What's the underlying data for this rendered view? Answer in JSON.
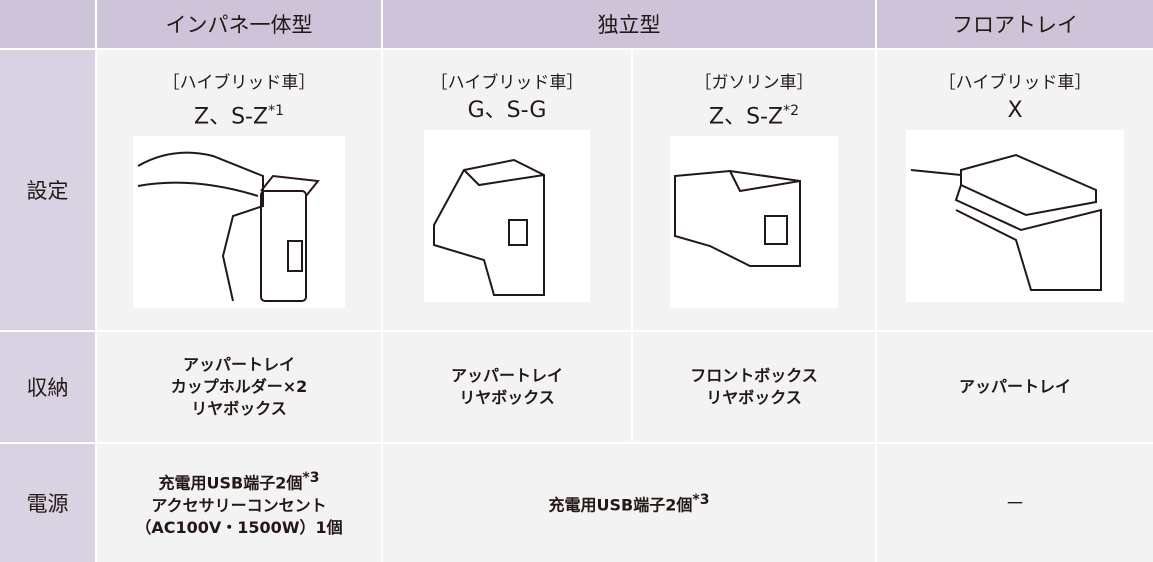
{
  "header": {
    "columns": [
      "インパネ一体型",
      "独立型",
      "フロアトレイ"
    ]
  },
  "row_labels": [
    "設定",
    "収納",
    "電源"
  ],
  "settings": [
    {
      "type": "［ハイブリッド車］",
      "grade": "Z、S-Z",
      "note": "*1"
    },
    {
      "type": "［ハイブリッド車］",
      "grade": "G、S-G"
    },
    {
      "type": "［ガソリン車］",
      "grade": "Z、S-Z",
      "note": "*2"
    },
    {
      "type": "［ハイブリッド車］",
      "grade": "X"
    }
  ],
  "storage": [
    [
      "アッパートレイ",
      "カップホルダー×2",
      "リヤボックス"
    ],
    [
      "アッパートレイ",
      "リヤボックス"
    ],
    [
      "フロントボックス",
      "リヤボックス"
    ],
    [
      "アッパートレイ"
    ]
  ],
  "power": [
    {
      "lines": [
        "充電用USB端子2個",
        "アクセサリーコンセント",
        "（AC100V・1500W）1個"
      ],
      "note": "*3"
    },
    {
      "lines": [
        "充電用USB端子2個"
      ],
      "note": "*3"
    },
    {
      "lines": [
        "－"
      ]
    }
  ]
}
